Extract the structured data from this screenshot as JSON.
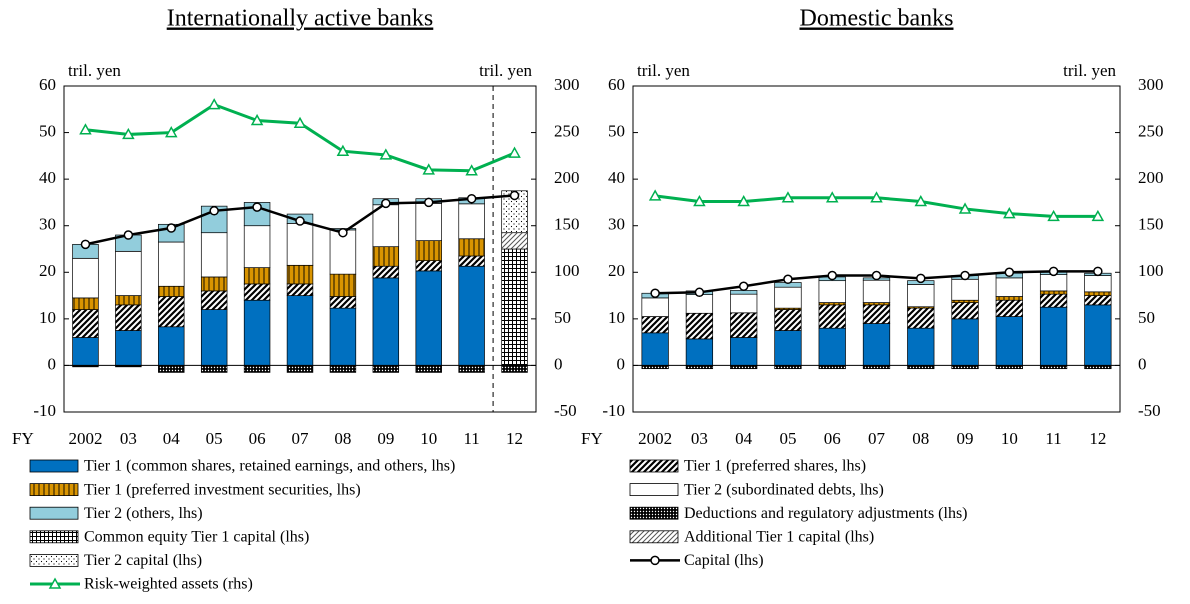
{
  "chart_data": [
    {
      "type": "bar",
      "title": "Internationally active banks",
      "xlabel": "FY",
      "ylabel": "tril. yen",
      "y2label": "tril. yen",
      "categories": [
        "2002",
        "03",
        "04",
        "05",
        "06",
        "07",
        "08",
        "09",
        "10",
        "11",
        "12"
      ],
      "ylim": [
        -10,
        60
      ],
      "yticks": [
        -10,
        0,
        10,
        20,
        30,
        40,
        50,
        60
      ],
      "y2lim": [
        -50,
        300
      ],
      "y2ticks": [
        -50,
        0,
        50,
        100,
        150,
        200,
        250,
        300
      ],
      "divider": true,
      "series": [
        {
          "name": "Tier 1 (common shares, retained earnings, and others, lhs)",
          "kind": "bar",
          "pattern": "solid",
          "color": "#0070c0",
          "values": [
            6,
            7.5,
            8.3,
            12,
            14,
            15,
            12.3,
            18.8,
            20.3,
            21.3,
            null
          ]
        },
        {
          "name": "Tier 1 (preferred shares, lhs)",
          "kind": "bar",
          "pattern": "diagonal",
          "color": "#000000",
          "values": [
            6,
            5.5,
            6.5,
            4,
            3.5,
            2.5,
            2.5,
            2.5,
            2.2,
            2.2,
            null
          ]
        },
        {
          "name": "Tier 1 (preferred investment securities, lhs)",
          "kind": "bar",
          "pattern": "vstripes",
          "color": "#d99400",
          "values": [
            2.5,
            2,
            2.2,
            3,
            3.5,
            4,
            4.8,
            4.2,
            4.3,
            3.7,
            null
          ]
        },
        {
          "name": "Tier 2 (subordinated debts, lhs)",
          "kind": "bar",
          "pattern": "solid",
          "color": "#ffffff",
          "values": [
            8.5,
            9.5,
            9.5,
            9.5,
            9,
            9,
            9.5,
            9,
            8,
            7.5,
            null
          ]
        },
        {
          "name": "Tier 2 (others, lhs)",
          "kind": "bar",
          "pattern": "solid",
          "color": "#92cddc",
          "values": [
            3,
            3.5,
            3.8,
            5.7,
            5,
            2,
            0.3,
            1.3,
            1,
            1.3,
            null
          ]
        },
        {
          "name": "Deductions and regulatory adjustments (lhs)",
          "kind": "bar",
          "pattern": "dense-dots",
          "color": "#000000",
          "values": [
            -0.3,
            -0.3,
            -1.5,
            -1.5,
            -1.5,
            -1.5,
            -1.5,
            -1.5,
            -1.5,
            -1.5,
            -1.5
          ]
        },
        {
          "name": "Common equity Tier 1 capital (lhs)",
          "kind": "bar",
          "pattern": "grid",
          "color": "#000000",
          "values": [
            null,
            null,
            null,
            null,
            null,
            null,
            null,
            null,
            null,
            null,
            25
          ]
        },
        {
          "name": "Additional Tier 1 capital (lhs)",
          "kind": "bar",
          "pattern": "thin-diagonal",
          "color": "#555555",
          "values": [
            null,
            null,
            null,
            null,
            null,
            null,
            null,
            null,
            null,
            null,
            3.5
          ]
        },
        {
          "name": "Tier 2 capital (lhs)",
          "kind": "bar",
          "pattern": "sparse-dots",
          "color": "#000000",
          "values": [
            null,
            null,
            null,
            null,
            null,
            null,
            null,
            null,
            null,
            null,
            9
          ]
        },
        {
          "name": "Capital (lhs)",
          "kind": "line",
          "marker": "circle",
          "color": "#000000",
          "values": [
            26,
            28,
            29.5,
            33.2,
            34,
            31,
            28.5,
            34.8,
            35,
            35.8,
            36.5
          ]
        },
        {
          "name": "Risk-weighted assets (rhs)",
          "kind": "line",
          "marker": "triangle",
          "axis": "y2",
          "color": "#00b050",
          "values": [
            253,
            248,
            250,
            280,
            263,
            260,
            230,
            226,
            210,
            209,
            228
          ]
        }
      ]
    },
    {
      "type": "bar",
      "title": "Domestic banks",
      "xlabel": "FY",
      "ylabel": "tril. yen",
      "y2label": "tril. yen",
      "categories": [
        "2002",
        "03",
        "04",
        "05",
        "06",
        "07",
        "08",
        "09",
        "10",
        "11",
        "12"
      ],
      "ylim": [
        -10,
        60
      ],
      "yticks": [
        -10,
        0,
        10,
        20,
        30,
        40,
        50,
        60
      ],
      "y2lim": [
        -50,
        300
      ],
      "y2ticks": [
        -50,
        0,
        50,
        100,
        150,
        200,
        250,
        300
      ],
      "divider": false,
      "series": [
        {
          "kind": "bar",
          "pattern": "solid",
          "color": "#0070c0",
          "values": [
            7,
            5.7,
            6,
            7.5,
            8,
            9,
            8,
            10,
            10.5,
            12.5,
            13
          ]
        },
        {
          "kind": "bar",
          "pattern": "diagonal",
          "color": "#000000",
          "values": [
            3.5,
            5.5,
            5.3,
            4.5,
            5,
            4,
            4.3,
            3.5,
            3.5,
            2.8,
            2
          ]
        },
        {
          "kind": "bar",
          "pattern": "vstripes",
          "color": "#d99400",
          "values": [
            0,
            0,
            0,
            0.3,
            0.5,
            0.5,
            0.3,
            0.5,
            0.8,
            0.7,
            0.8
          ]
        },
        {
          "kind": "bar",
          "pattern": "solid",
          "color": "#ffffff",
          "values": [
            4,
            4,
            4,
            4.5,
            4.7,
            4.8,
            4.8,
            4.5,
            4,
            3.5,
            3.5
          ]
        },
        {
          "kind": "bar",
          "pattern": "solid",
          "color": "#92cddc",
          "values": [
            1,
            0.8,
            0.8,
            1,
            0.8,
            0.5,
            0.8,
            0.8,
            1,
            0.8,
            0.5
          ]
        },
        {
          "kind": "bar",
          "pattern": "dense-dots",
          "color": "#000000",
          "values": [
            -0.7,
            -0.7,
            -0.7,
            -0.7,
            -0.7,
            -0.7,
            -0.7,
            -0.7,
            -0.7,
            -0.7,
            -0.7
          ]
        },
        {
          "kind": "line",
          "marker": "circle",
          "color": "#000000",
          "values": [
            15.5,
            15.7,
            17,
            18.5,
            19.3,
            19.3,
            18.7,
            19.3,
            20,
            20.2,
            20.2
          ]
        },
        {
          "kind": "line",
          "marker": "triangle",
          "axis": "y2",
          "color": "#00b050",
          "values": [
            182,
            176,
            176,
            180,
            180,
            180,
            176,
            168,
            163,
            160,
            160
          ]
        }
      ]
    }
  ]
}
